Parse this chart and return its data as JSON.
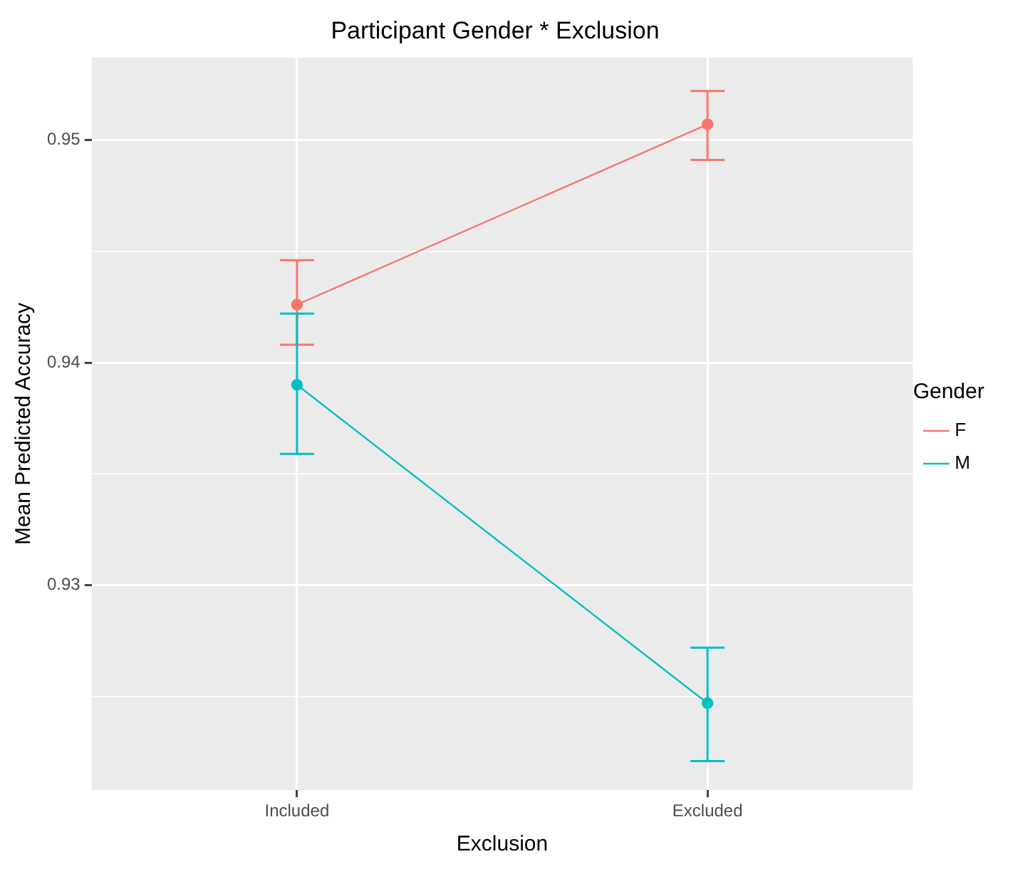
{
  "chart_data": {
    "type": "line",
    "title": "Participant Gender * Exclusion",
    "xlabel": "Exclusion",
    "ylabel": "Mean Predicted Accuracy",
    "legend_title": "Gender",
    "categories": [
      "Included",
      "Excluded"
    ],
    "series": [
      {
        "name": "F",
        "color": "#f8766d",
        "values": [
          0.9426,
          0.9507
        ],
        "errors": [
          [
            0.9408,
            0.9446
          ],
          [
            0.9491,
            0.9522
          ]
        ]
      },
      {
        "name": "M",
        "color": "#00bfc4",
        "values": [
          0.939,
          0.9247
        ],
        "errors": [
          [
            0.9359,
            0.9422
          ],
          [
            0.9221,
            0.9272
          ]
        ]
      }
    ],
    "ylim": [
      0.9208,
      0.9537
    ],
    "yticks": [
      {
        "value": 0.925,
        "label": null
      },
      0.93,
      {
        "value": 0.935,
        "label": null
      },
      0.94,
      {
        "value": 0.945,
        "label": null
      },
      0.95
    ],
    "grid": true,
    "legend": "right",
    "marker": "circle",
    "line_style": "solid"
  }
}
